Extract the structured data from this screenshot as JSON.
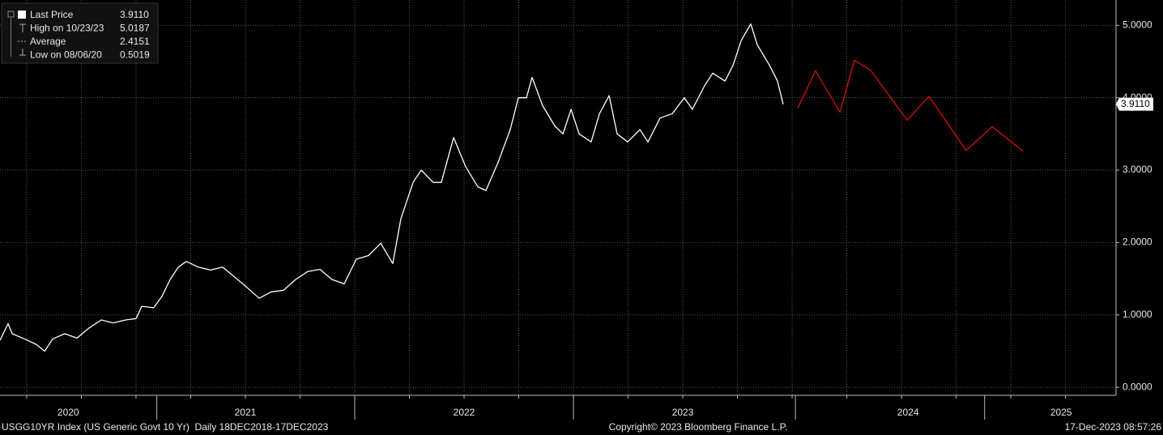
{
  "chart_data": {
    "type": "line",
    "legend_rows": [
      {
        "label": "Last Price",
        "value": "3.9110"
      },
      {
        "label": "High on 10/23/23",
        "value": "5.0187"
      },
      {
        "label": "Average",
        "value": "2.4151"
      },
      {
        "label": "Low on 08/06/20",
        "value": "0.5019"
      }
    ],
    "last_price": 3.911,
    "last_price_label": "3.9110",
    "series": [
      {
        "name": "Last Price",
        "color": "#ffffff",
        "x": [
          2020.378,
          2020.415,
          2020.434,
          2020.489,
          2020.545,
          2020.582,
          2020.619,
          2020.674,
          2020.73,
          2020.785,
          2020.841,
          2020.896,
          2020.952,
          2021.0,
          2021.026,
          2021.081,
          2021.119,
          2021.156,
          2021.193,
          2021.23,
          2021.285,
          2021.341,
          2021.396,
          2021.452,
          2021.507,
          2021.563,
          2021.619,
          2021.674,
          2021.73,
          2021.785,
          2021.841,
          2021.896,
          2021.952,
          2022.007,
          2022.063,
          2022.119,
          2022.174,
          2022.211,
          2022.267,
          2022.304,
          2022.359,
          2022.396,
          2022.452,
          2022.507,
          2022.563,
          2022.6,
          2022.656,
          2022.711,
          2022.748,
          2022.785,
          2022.811,
          2022.859,
          2022.915,
          2022.952,
          2022.989,
          2023.026,
          2023.081,
          2023.119,
          2023.163,
          2023.2,
          2023.248,
          2023.304,
          2023.341,
          2023.396,
          2023.452,
          2023.507,
          2023.544,
          2023.6,
          2023.637,
          2023.693,
          2023.73,
          2023.767,
          2023.811,
          2023.841,
          2023.896,
          2023.933,
          2023.959
        ],
        "values": [
          0.65,
          0.88,
          0.74,
          0.67,
          0.59,
          0.5,
          0.67,
          0.74,
          0.68,
          0.82,
          0.93,
          0.89,
          0.93,
          0.95,
          1.12,
          1.1,
          1.26,
          1.49,
          1.66,
          1.74,
          1.66,
          1.62,
          1.66,
          1.52,
          1.38,
          1.23,
          1.32,
          1.34,
          1.49,
          1.6,
          1.63,
          1.49,
          1.43,
          1.77,
          1.82,
          1.99,
          1.71,
          2.33,
          2.83,
          3.0,
          2.83,
          2.83,
          3.45,
          3.05,
          2.77,
          2.72,
          3.11,
          3.56,
          4.0,
          4.0,
          4.28,
          3.89,
          3.61,
          3.5,
          3.84,
          3.5,
          3.39,
          3.78,
          4.03,
          3.5,
          3.39,
          3.56,
          3.39,
          3.72,
          3.78,
          4.0,
          3.84,
          4.17,
          4.34,
          4.23,
          4.45,
          4.79,
          5.02,
          4.73,
          4.45,
          4.23,
          3.91
        ]
      },
      {
        "color": "#d01010",
        "x": [
          2024.026,
          2024.107,
          2024.219,
          2024.285,
          2024.359,
          2024.526,
          2024.626,
          2024.796,
          2024.915,
          2025.056
        ],
        "values": [
          3.86,
          4.37,
          3.8,
          4.52,
          4.38,
          3.69,
          4.02,
          3.27,
          3.6,
          3.26
        ]
      }
    ],
    "xlim": [
      2020.378,
      2025.481
    ],
    "xticks": [
      {
        "value": 2020.69,
        "label": "2020"
      },
      {
        "value": 2021.5,
        "label": "2021"
      },
      {
        "value": 2022.5,
        "label": "2022"
      },
      {
        "value": 2023.5,
        "label": "2023"
      },
      {
        "value": 2024.53,
        "label": "2024"
      },
      {
        "value": 2025.23,
        "label": "2025"
      }
    ],
    "ylim": [
      -0.11,
      5.35
    ],
    "yticks": [
      {
        "value": 0,
        "label": "0.0000"
      },
      {
        "value": 1,
        "label": "1.0000"
      },
      {
        "value": 2,
        "label": "2.0000"
      },
      {
        "value": 3,
        "label": "3.0000"
      },
      {
        "value": 4,
        "label": "4.0000"
      },
      {
        "value": 5,
        "label": "5.0000"
      }
    ],
    "grid": true,
    "footer_left": "USGG10YR Index (US Generic Govt 10 Yr)  Daily 18DEC2018-17DEC2023",
    "footer_center": "Copyright© 2023 Bloomberg Finance L.P.",
    "footer_right": "17-Dec-2023 08:57:26"
  }
}
